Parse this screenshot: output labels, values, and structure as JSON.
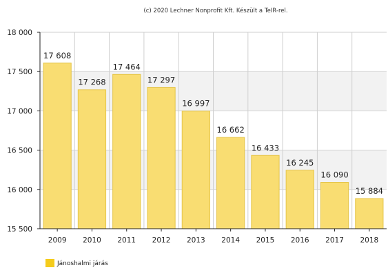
{
  "credit": "(c) 2020 Lechner Nonprofit Kft. Készült a TeIR-rel.",
  "colors": {
    "bar_fill": "#f9dd72",
    "bar_stroke": "#e5c54a",
    "legend_swatch": "#f5cc1c",
    "band": "#f2f2f2",
    "grid": "#cfcfcf",
    "axis": "#222222"
  },
  "chart_data": {
    "type": "bar",
    "categories": [
      "2009",
      "2010",
      "2011",
      "2012",
      "2013",
      "2014",
      "2015",
      "2016",
      "2017",
      "2018"
    ],
    "series": [
      {
        "name": "Jánoshalmi járás",
        "values": [
          17608,
          17268,
          17464,
          17297,
          16997,
          16662,
          16433,
          16245,
          16090,
          15884
        ],
        "labels": [
          "17 608",
          "17 268",
          "17 464",
          "17 297",
          "16 997",
          "16 662",
          "16 433",
          "16 245",
          "16 090",
          "15 884"
        ]
      }
    ],
    "ylim": [
      15500,
      18000
    ],
    "yticks": [
      15500,
      16000,
      16500,
      17000,
      17500,
      18000
    ],
    "ytick_labels": [
      "15 500",
      "16 000",
      "16 500",
      "17 000",
      "17 500",
      "18 000"
    ],
    "title": "",
    "xlabel": "",
    "ylabel": "",
    "grid": true,
    "legend_position": "bottom-left"
  }
}
